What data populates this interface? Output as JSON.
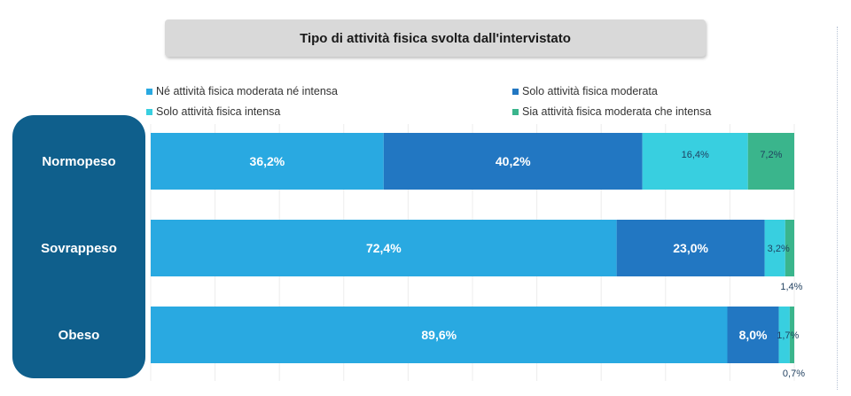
{
  "chart_data": {
    "type": "bar",
    "orientation": "horizontal",
    "stacked": true,
    "title": "Tipo di attività fisica svolta dall'intervistato",
    "categories": [
      "Normopeso",
      "Sovrappeso",
      "Obeso"
    ],
    "series": [
      {
        "name": "Né attività fisica moderata né intensa",
        "values": [
          36.2,
          72.4,
          89.6
        ],
        "labels": [
          "36,2%",
          "72,4%",
          "89,6%"
        ],
        "color": "#29a9e1"
      },
      {
        "name": "Solo attività fisica moderata",
        "values": [
          40.2,
          23.0,
          8.0
        ],
        "labels": [
          "40,2%",
          "23,0%",
          "8,0%"
        ],
        "color": "#2277c2"
      },
      {
        "name": "Solo attività fisica intensa",
        "values": [
          16.4,
          3.2,
          1.7
        ],
        "labels": [
          "16,4%",
          "3,2%",
          "1,7%"
        ],
        "color": "#38cfe0"
      },
      {
        "name": "Sia attività fisica moderata che intensa",
        "values": [
          7.2,
          1.4,
          0.7
        ],
        "labels": [
          "7,2%",
          "1,4%",
          "0,7%"
        ],
        "color": "#3ab58c"
      }
    ],
    "xlim": [
      0,
      100
    ],
    "grid": true,
    "legend": "top"
  }
}
